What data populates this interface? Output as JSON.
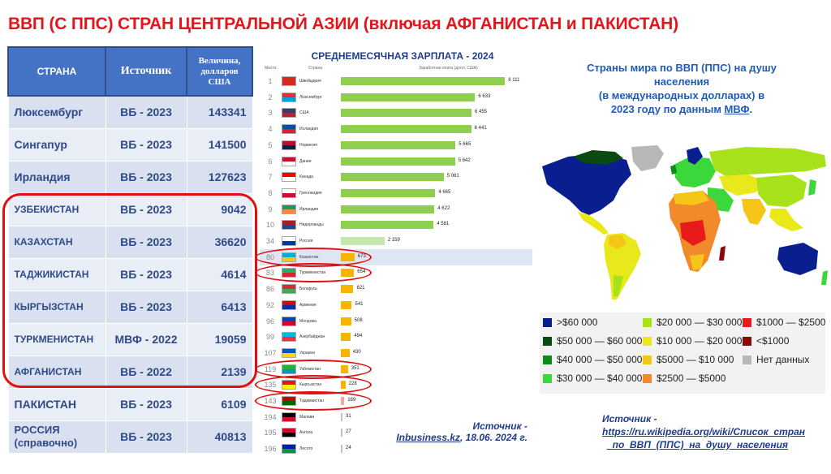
{
  "title": "ВВП  (С ППС) СТРАН ЦЕНТРАЛЬНОЙ АЗИИ (включая АФГАНИСТАН и ПАКИСТАН)",
  "gdp_table": {
    "headers": [
      "СТРАНА",
      "Источник",
      "Величина, долларов США"
    ],
    "rows": [
      {
        "country": "Люксембург",
        "source": "ВБ - 2023",
        "value": "143341"
      },
      {
        "country": "Сингапур",
        "source": "ВБ - 2023",
        "value": "141500"
      },
      {
        "country": "Ирландия",
        "source": "ВБ - 2023",
        "value": "127623"
      },
      {
        "country": "УЗБЕКИСТАН",
        "source": "ВБ - 2023",
        "value": "9042"
      },
      {
        "country": "КАЗАХСТАН",
        "source": "ВБ - 2023",
        "value": "36620"
      },
      {
        "country": "ТАДЖИКИСТАН",
        "source": "ВБ - 2023",
        "value": "4614"
      },
      {
        "country": "КЫРГЫЗСТАН",
        "source": "ВБ - 2023",
        "value": "6413"
      },
      {
        "country": "ТУРКМЕНИСТАН",
        "source": "МВФ - 2022",
        "value": "19059"
      },
      {
        "country": "АФГАНИСТАН",
        "source": "ВБ - 2022",
        "value": "2139"
      },
      {
        "country": "ПАКИСТАН",
        "source": "ВБ - 2023",
        "value": "6109"
      },
      {
        "country": "РОССИЯ (справочно)",
        "source": "ВБ - 2023",
        "value": "40813"
      }
    ]
  },
  "salary": {
    "title": "СРЕДНЕМЕСЯЧНАЯ ЗАРПЛАТА - 2024",
    "col_rank": "Место",
    "col_country": "Страна",
    "col_value": "Заработная плата (долл. США)",
    "source_line1": "Источник -",
    "source_line2": "Inbusiness.kz",
    "source_line3": ", 18.06. 2024 г."
  },
  "chart_data": {
    "type": "bar",
    "title": "СРЕДНЕМЕСЯЧНАЯ ЗАРПЛАТА - 2024",
    "ranks": [
      "1",
      "2",
      "3",
      "4",
      "5",
      "6",
      "7",
      "8",
      "9",
      "10",
      "34",
      "80",
      "83",
      "86",
      "92",
      "96",
      "99",
      "107",
      "119",
      "135",
      "143",
      "194",
      "195",
      "196"
    ],
    "categories": [
      "Швейцария",
      "Люксембург",
      "США",
      "Исландия",
      "Норвегия",
      "Дания",
      "Канада",
      "Гренландия",
      "Ирландия",
      "Нидерланды",
      "Россия",
      "Казахстан",
      "Туркменистан",
      "Беларусь",
      "Армения",
      "Молдова",
      "Азербайджан",
      "Украина",
      "Узбекистан",
      "Кыргызстан",
      "Таджикистан",
      "Малави",
      "Ангола",
      "Лесото"
    ],
    "values": [
      8111,
      6633,
      6455,
      6441,
      5665,
      5642,
      5081,
      4665,
      4622,
      4581,
      2159,
      673,
      654,
      621,
      541,
      508,
      494,
      430,
      351,
      228,
      169,
      31,
      27,
      24
    ],
    "xlim": [
      0,
      8500
    ]
  },
  "map": {
    "title_line1": "Страны мира по ВВП (ППС) на душу",
    "title_line2": "населения",
    "title_line3": "(в международных долларах) в",
    "title_line4": "2023 году по данным ",
    "title_link": "МВФ",
    "title_end": ".",
    "legend": [
      {
        "label": ">$60 000",
        "color": "#0a1f8f"
      },
      {
        "label": "$50 000 — $60 000",
        "color": "#0b4a12"
      },
      {
        "label": "$40 000 — $50 000",
        "color": "#0f8a1a"
      },
      {
        "label": "$30 000 — $40 000",
        "color": "#3ad83a"
      },
      {
        "label": "$20 000 — $30 000",
        "color": "#a8e21a"
      },
      {
        "label": "$10 000 — $20 000",
        "color": "#e8e81a"
      },
      {
        "label": "$5000 — $10 000",
        "color": "#f5c518"
      },
      {
        "label": "$2500 — $5000",
        "color": "#f08a2a"
      },
      {
        "label": "$1000 — $2500",
        "color": "#e81a1a"
      },
      {
        "label": "<$1000",
        "color": "#8a0a0a"
      },
      {
        "label": "Нет данных",
        "color": "#b8b8b8"
      }
    ],
    "source_line1": "Источник -",
    "source_line2": "https://ru.wikipedia.org/wiki/Список_стран",
    "source_line3": "_по_ВВП_(ППС)_на_душу_населения"
  }
}
